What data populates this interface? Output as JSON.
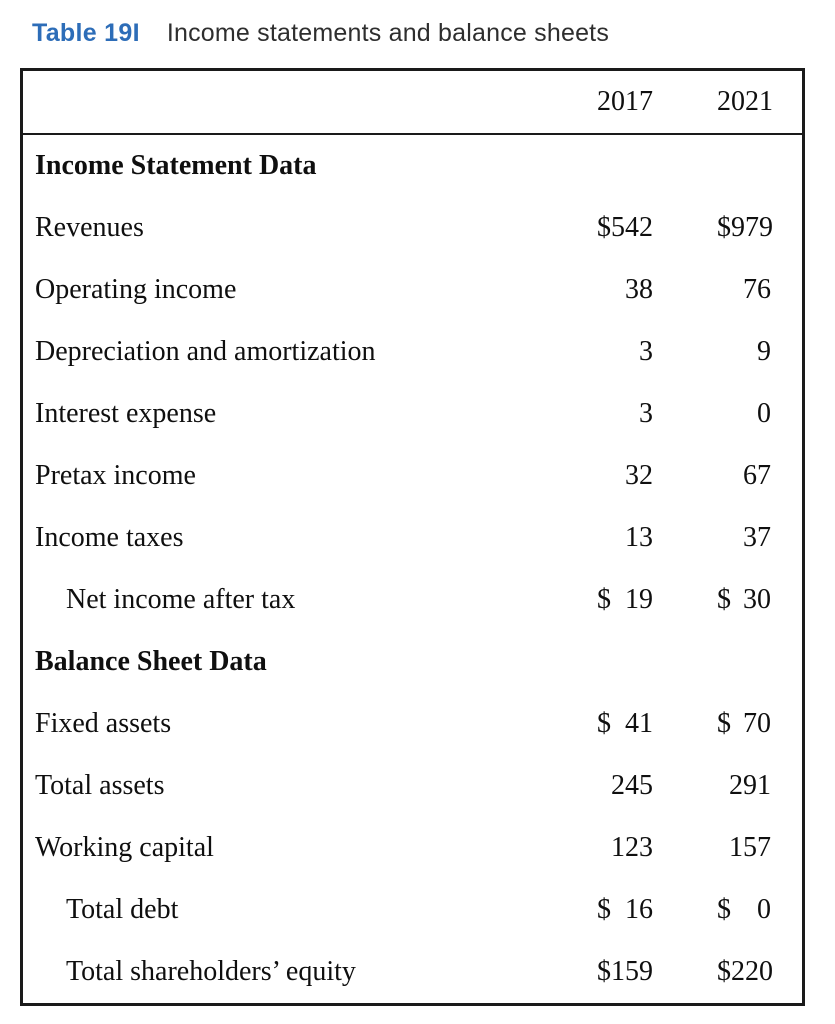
{
  "title": {
    "tag": "Table 19I",
    "text": "Income statements and balance sheets"
  },
  "colors": {
    "accent_blue": "#2d6db8",
    "text_dark": "#0f0f0f",
    "border": "#1a1a1a"
  },
  "table": {
    "columns": [
      "2017",
      "2021"
    ],
    "rows": [
      {
        "kind": "section",
        "label": "Income Statement Data"
      },
      {
        "kind": "data",
        "label": "Revenues",
        "d1": "$",
        "v1": "542",
        "d2": "$",
        "v2": "979"
      },
      {
        "kind": "data",
        "label": "Operating income",
        "v1": "38",
        "v2": "76"
      },
      {
        "kind": "data",
        "label": "Depreciation and amortization",
        "v1": "3",
        "v2": "9"
      },
      {
        "kind": "data",
        "label": "Interest expense",
        "v1": "3",
        "v2": "0"
      },
      {
        "kind": "data",
        "label": "Pretax income",
        "v1": "32",
        "v2": "67"
      },
      {
        "kind": "data",
        "label": "Income taxes",
        "v1": "13",
        "v2": "37"
      },
      {
        "kind": "data",
        "label": "Net income after tax",
        "indent": true,
        "d1": "$",
        "v1": "19",
        "d2": "$",
        "v2": "30"
      },
      {
        "kind": "section",
        "label": "Balance Sheet Data"
      },
      {
        "kind": "data",
        "label": "Fixed assets",
        "d1": "$",
        "v1": "41",
        "d2": "$",
        "v2": "70"
      },
      {
        "kind": "data",
        "label": "Total assets",
        "v1": "245",
        "v2": "291"
      },
      {
        "kind": "data",
        "label": "Working capital",
        "v1": "123",
        "v2": "157"
      },
      {
        "kind": "data",
        "label": "Total debt",
        "indent": true,
        "d1": "$",
        "v1": "16",
        "d2": "$",
        "v2": "0"
      },
      {
        "kind": "data",
        "label": "Total shareholders’ equity",
        "indent": true,
        "d1": "$",
        "v1": "159",
        "d2": "$",
        "v2": "220"
      }
    ]
  }
}
